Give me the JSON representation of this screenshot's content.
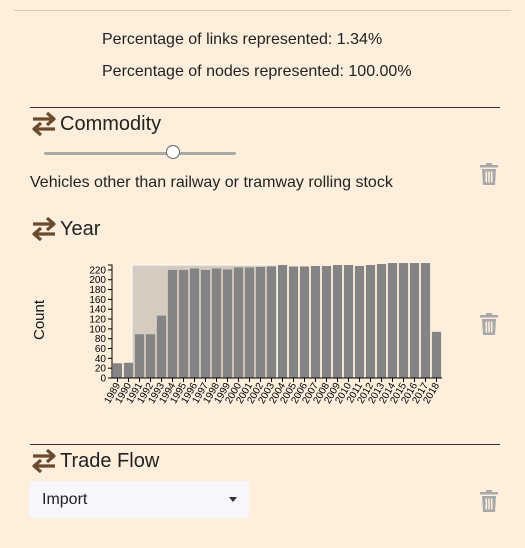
{
  "stats": {
    "links": "Percentage of links represented: 1.34%",
    "nodes": "Percentage of nodes represented: 100.00%"
  },
  "sections": {
    "commodity": {
      "title": "Commodity",
      "slider_value_fraction": 0.67,
      "selected": "Vehicles other than railway or tramway rolling stock"
    },
    "year": {
      "title": "Year"
    },
    "trade_flow": {
      "title": "Trade Flow",
      "selected": "Import"
    }
  },
  "icons": {
    "section_icon": "swap-arrows-icon",
    "delete_icon": "trash-icon",
    "dropdown_icon": "caret-down-icon"
  },
  "colors": {
    "background": "#fdefdc",
    "accent_brown": "#6b4a30",
    "bar": "#848484",
    "brush": "#d5ccbf",
    "trash": "#a8a8a8"
  },
  "chart_data": {
    "type": "bar",
    "ylabel": "Count",
    "xlabel": "",
    "ylim": [
      0,
      230
    ],
    "yticks": [
      0,
      20,
      40,
      60,
      80,
      100,
      120,
      140,
      160,
      180,
      200,
      220
    ],
    "categories": [
      "1989",
      "1990",
      "1991",
      "1992",
      "1993",
      "1994",
      "1995",
      "1996",
      "1997",
      "1998",
      "1999",
      "2000",
      "2001",
      "2002",
      "2003",
      "2004",
      "2005",
      "2006",
      "2007",
      "2008",
      "2009",
      "2010",
      "2011",
      "2012",
      "2013",
      "2014",
      "2015",
      "2016",
      "2017",
      "2018"
    ],
    "values": [
      30,
      31,
      89,
      89,
      127,
      220,
      220,
      223,
      220,
      223,
      221,
      225,
      225,
      226,
      227,
      230,
      227,
      227,
      228,
      228,
      230,
      230,
      228,
      230,
      232,
      234,
      234,
      234,
      234,
      94
    ],
    "brush_selection": [
      "1991",
      "2003"
    ],
    "grid": false
  }
}
